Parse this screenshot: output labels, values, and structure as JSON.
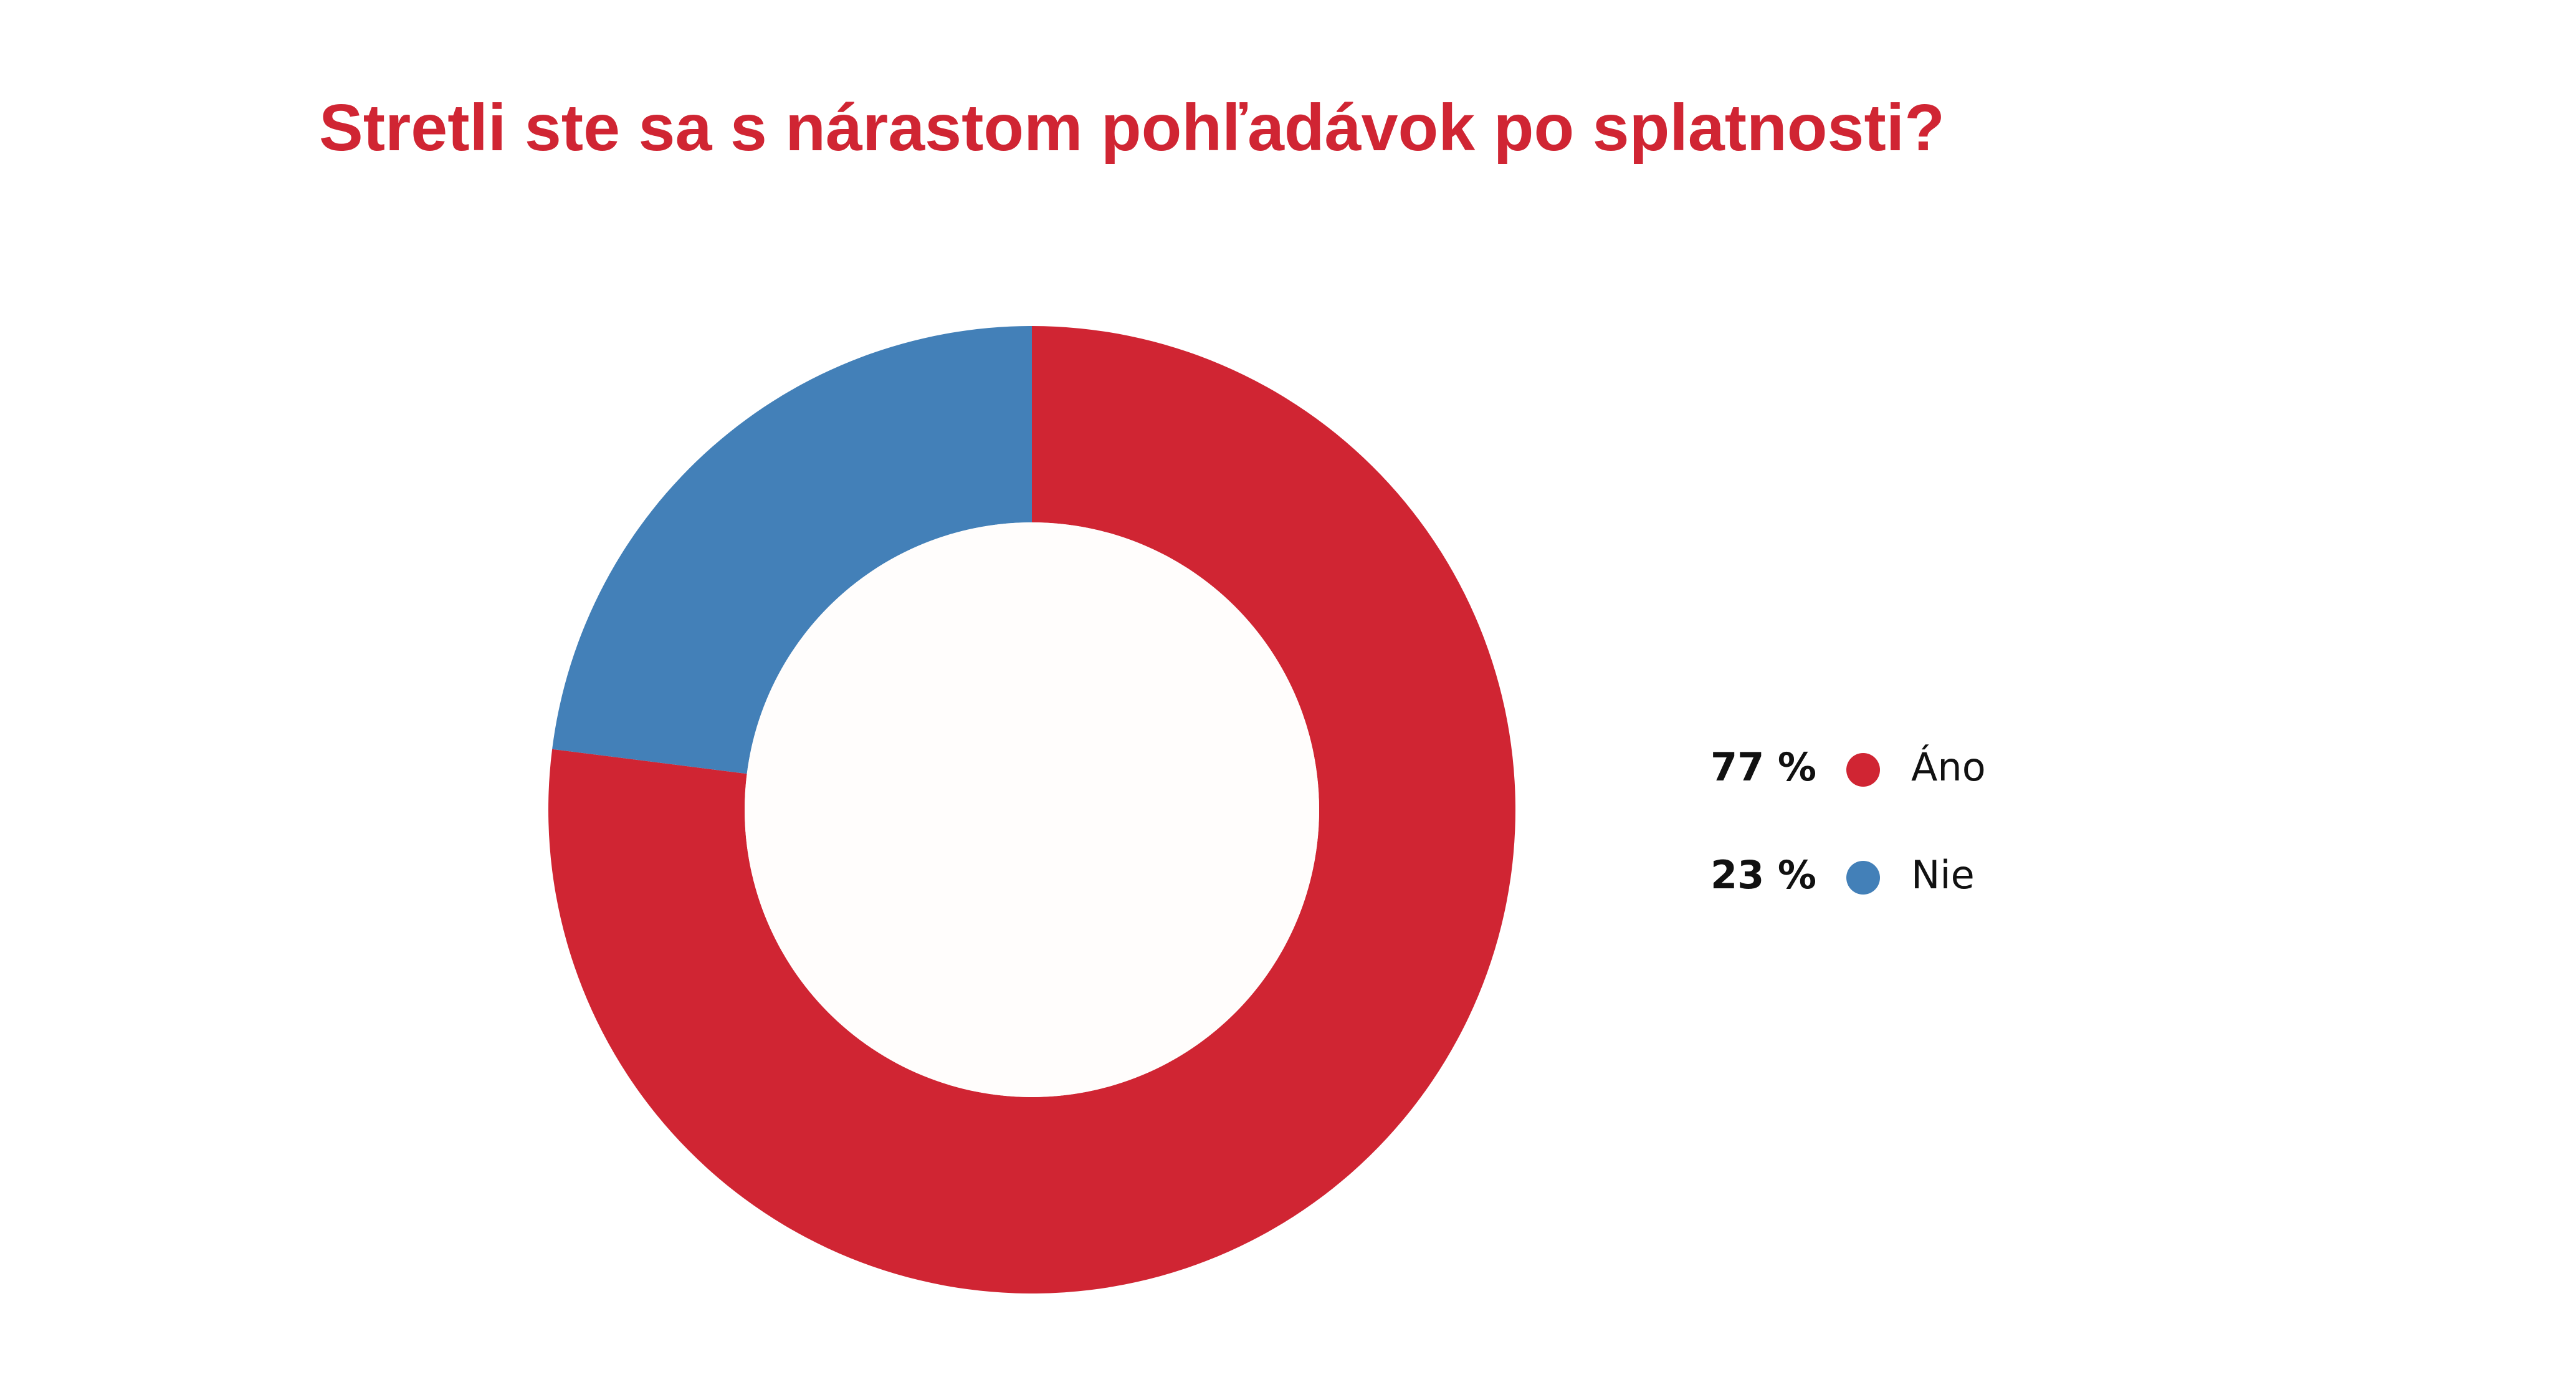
{
  "chart_data": {
    "type": "donut",
    "title": "Stretli ste sa s nárastom pohľadávok po splatnosti?",
    "categories": [
      "Áno",
      "Nie"
    ],
    "values": [
      77,
      23
    ],
    "value_labels": [
      "77 %",
      "23 %"
    ],
    "colors": [
      "#d02533",
      "#4380b8"
    ]
  }
}
